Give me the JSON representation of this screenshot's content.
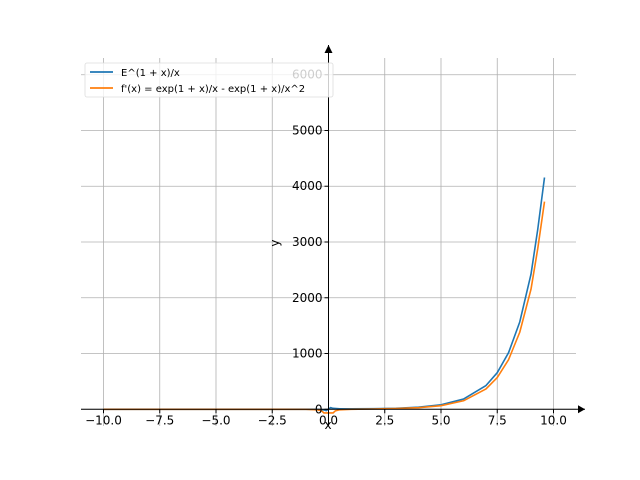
{
  "chart_data": {
    "type": "line",
    "title": "",
    "xlabel": "x",
    "ylabel": "y",
    "xlim": [
      -11.0,
      11.0
    ],
    "ylim": [
      -300,
      6300
    ],
    "grid": true,
    "legend_position": "top-left",
    "x_ticks": [
      -10.0,
      -7.5,
      -5.0,
      -2.5,
      0.0,
      2.5,
      5.0,
      7.5,
      10.0
    ],
    "x_tick_labels": [
      "−10.0",
      "−7.5",
      "−5.0",
      "−2.5",
      "0.0",
      "2.5",
      "5.0",
      "7.5",
      "10.0"
    ],
    "y_ticks": [
      0,
      1000,
      2000,
      3000,
      4000,
      5000,
      6000
    ],
    "y_tick_labels": [
      "0",
      "1000",
      "2000",
      "3000",
      "4000",
      "5000",
      "6000"
    ],
    "series": [
      {
        "name": "E^(1 + x)/x",
        "color": "#1f77b4",
        "x": [
          -10.0,
          -8.0,
          -6.0,
          -4.0,
          -2.0,
          -1.0,
          -0.5,
          -0.2,
          -0.1,
          0.1,
          0.2,
          0.5,
          1.0,
          2.0,
          3.0,
          4.0,
          5.0,
          6.0,
          7.0,
          7.5,
          8.0,
          8.5,
          9.0,
          9.3,
          9.6
        ],
        "y": [
          0.0,
          0.0,
          -0.001,
          -0.012,
          -0.18,
          -1.0,
          -3.3,
          -11.1,
          -24.6,
          30.0,
          16.6,
          8.96,
          7.39,
          10.04,
          18.2,
          37.1,
          80.7,
          182.8,
          425.9,
          656.3,
          1012.9,
          1565.4,
          2422.5,
          3227.6,
          4156.5
        ]
      },
      {
        "name": "f'(x) = exp(1 + x)/x - exp(1 + x)/x^2",
        "color": "#ff7f0e",
        "x": [
          -10.0,
          -8.0,
          -6.0,
          -4.0,
          -2.0,
          -1.0,
          -0.5,
          -0.3,
          -0.2,
          0.2,
          0.3,
          0.5,
          1.0,
          2.0,
          3.0,
          4.0,
          5.0,
          6.0,
          7.0,
          7.5,
          8.0,
          8.5,
          9.0,
          9.3,
          9.6
        ],
        "y": [
          0.0,
          0.0,
          -0.001,
          -0.015,
          -0.27,
          -2.0,
          -9.9,
          -29.1,
          -66.4,
          -66.4,
          -29.1,
          -9.0,
          0.0,
          5.0,
          12.1,
          27.8,
          64.5,
          152.3,
          365.1,
          568.8,
          886.3,
          1381.2,
          2153.4,
          2880.5,
          3723.5
        ]
      }
    ]
  }
}
